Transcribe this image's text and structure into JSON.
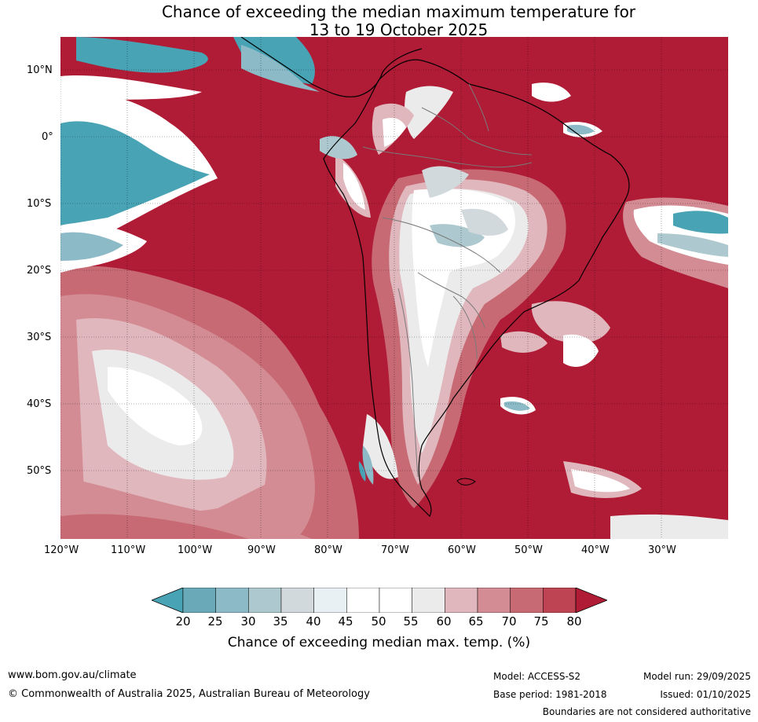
{
  "title": {
    "line1": "Chance of exceeding the median maximum temperature for",
    "line2": "13 to 19 October 2025"
  },
  "map": {
    "latitude_labels": [
      "10°N",
      "0°",
      "10°S",
      "20°S",
      "30°S",
      "40°S",
      "50°S"
    ],
    "longitude_labels": [
      "120°W",
      "110°W",
      "100°W",
      "90°W",
      "80°W",
      "70°W",
      "60°W",
      "50°W",
      "40°W",
      "30°W"
    ],
    "colors": {
      "high": "#b01b35",
      "ocean_low": "#48a3b5",
      "land_outline": "#000000",
      "border": "#7a7a7a"
    }
  },
  "colorbar": {
    "ticks": [
      "20",
      "25",
      "30",
      "35",
      "40",
      "45",
      "50",
      "55",
      "60",
      "65",
      "70",
      "75",
      "80"
    ],
    "colors": [
      "#48a3b5",
      "#6aaab8",
      "#8cbac7",
      "#adc9cf",
      "#d2d9dc",
      "#e8f0f3",
      "#ffffff",
      "#ffffff",
      "#ecebec",
      "#e0b7bc",
      "#d38c93",
      "#c76a74",
      "#bf4453",
      "#b01b35"
    ],
    "title": "Chance of exceeding median max. temp. (%)"
  },
  "footer": {
    "website": "www.bom.gov.au/climate",
    "copyright": "© Commonwealth of Australia 2025, Australian Bureau of Meteorology",
    "model": "Model: ACCESS-S2",
    "model_run": "Model run: 29/09/2025",
    "base_period": "Base period: 1981-2018",
    "issued": "Issued: 01/10/2025",
    "disclaimer": "Boundaries are not considered authoritative"
  }
}
